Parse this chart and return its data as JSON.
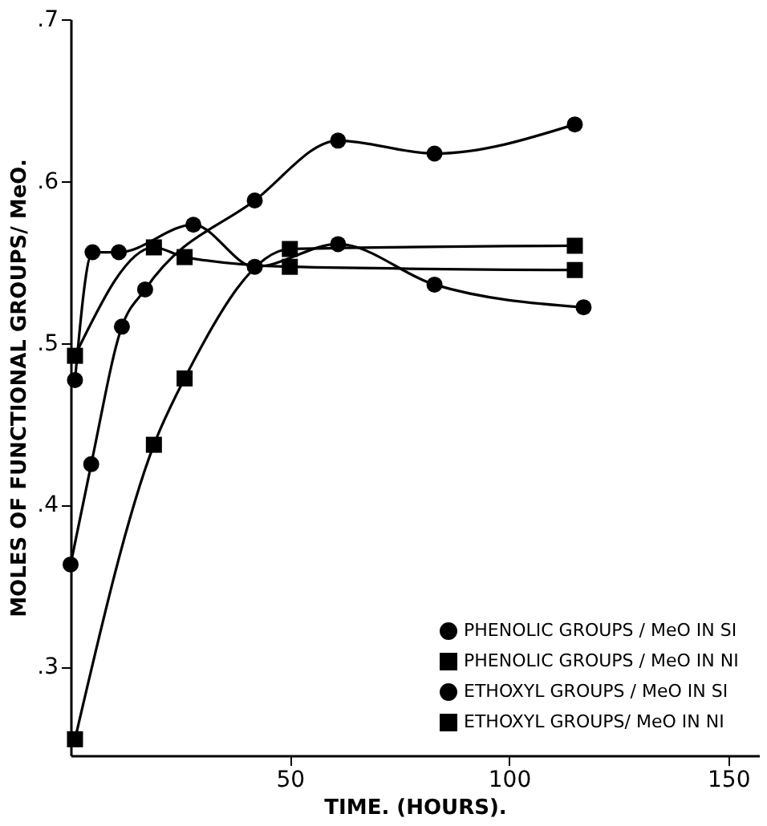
{
  "chart_data": {
    "type": "line",
    "xlabel": "TIME. (HOURS).",
    "ylabel": "MOLES OF FUNCTIONAL GROUPS/ MeO.",
    "xlim": [
      0,
      157
    ],
    "xticks": [
      50,
      100,
      150
    ],
    "ylim": [
      0.245,
      0.7
    ],
    "yticks": [
      {
        "value": 0.3,
        "label": ".3"
      },
      {
        "value": 0.4,
        "label": ".4"
      },
      {
        "value": 0.5,
        "label": ".5"
      },
      {
        "value": 0.6,
        "label": ".6"
      },
      {
        "value": 0.7,
        "label": ".7"
      }
    ],
    "grid": false,
    "legend": "bottom right",
    "line_style": "solid",
    "series": [
      {
        "name": "PHENOLIC GROUPS / MeO IN SI",
        "color": "#000000",
        "marker": "circle",
        "x": [
          0,
          4.7,
          11.7,
          17,
          42,
          61,
          83,
          115
        ],
        "values": [
          0.363,
          0.425,
          0.51,
          0.533,
          0.588,
          0.625,
          0.617,
          0.635
        ]
      },
      {
        "name": "PHENOLIC GROUPS / MeO IN NI",
        "color": "#000000",
        "marker": "square",
        "x": [
          1,
          19,
          26,
          50,
          115
        ],
        "values": [
          0.255,
          0.437,
          0.478,
          0.558,
          0.56
        ]
      },
      {
        "name": "ETHOXYL GROUPS / MeO IN SI",
        "color": "#000000",
        "marker": "circle",
        "x": [
          1,
          5,
          11,
          28,
          42,
          61,
          83,
          117
        ],
        "values": [
          0.477,
          0.556,
          0.556,
          0.573,
          0.547,
          0.561,
          0.536,
          0.522
        ]
      },
      {
        "name": "ETHOXYL GROUPS/ MeO IN NI",
        "color": "#000000",
        "marker": "square",
        "x": [
          1,
          19,
          26,
          50,
          115
        ],
        "values": [
          0.492,
          0.559,
          0.553,
          0.547,
          0.545
        ]
      }
    ]
  }
}
